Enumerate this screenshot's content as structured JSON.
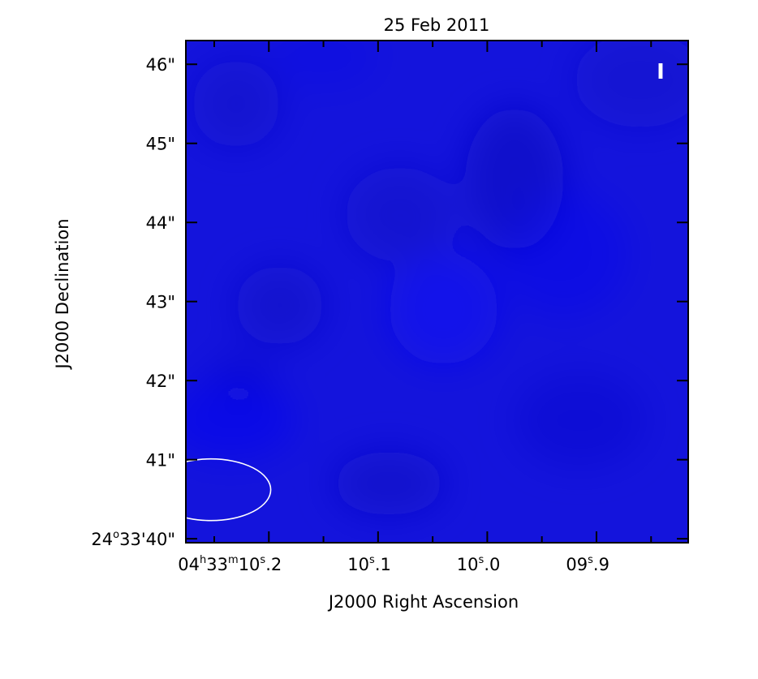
{
  "chart_data": {
    "type": "heatmap",
    "title": "25 Feb 2011",
    "xlabel": "J2000 Right Ascension",
    "ylabel": "J2000 Declination",
    "stokes_label": "I",
    "ra_ticks": [
      {
        "h": "04",
        "m": "33",
        "s": "10",
        "frac": ".2",
        "full": true,
        "value_s": 10.2
      },
      {
        "s": "10",
        "frac": ".1",
        "value_s": 10.1
      },
      {
        "s": "10",
        "frac": ".0",
        "value_s": 10.0
      },
      {
        "s": "09",
        "frac": ".9",
        "value_s": 9.9
      }
    ],
    "dec_ticks": [
      {
        "label": "24°33'40\"",
        "value_arcsec": 40,
        "d": "24",
        "m": "33",
        "s": "40"
      },
      {
        "label": "41\"",
        "value_arcsec": 41
      },
      {
        "label": "42\"",
        "value_arcsec": 42
      },
      {
        "label": "43\"",
        "value_arcsec": 43
      },
      {
        "label": "44\"",
        "value_arcsec": 44
      },
      {
        "label": "45\"",
        "value_arcsec": 45
      },
      {
        "label": "46\"",
        "value_arcsec": 46
      }
    ],
    "xlim_s": [
      10.276,
      9.816
    ],
    "ylim_arcsec": [
      39.95,
      46.3
    ],
    "colormap": {
      "low": "#1010c8",
      "high": "#0a0af2",
      "background": "#1414dc"
    },
    "beam": {
      "center_s": 10.253,
      "center_arcsec": 40.62,
      "major_s": 0.08,
      "minor_arcsec": 0.78,
      "color": "#ffffff"
    },
    "blobs": [
      {
        "ra_s": 10.23,
        "dec_arcsec": 45.5,
        "rs": 0.04,
        "ra": 0.55,
        "amp": -0.25
      },
      {
        "ra_s": 9.975,
        "dec_arcsec": 44.55,
        "rs": 0.045,
        "ra": 0.9,
        "amp": -0.38
      },
      {
        "ra_s": 10.08,
        "dec_arcsec": 44.1,
        "rs": 0.05,
        "ra": 0.6,
        "amp": -0.25
      },
      {
        "ra_s": 9.86,
        "dec_arcsec": 45.8,
        "rs": 0.06,
        "ra": 0.6,
        "amp": -0.22
      },
      {
        "ra_s": 10.19,
        "dec_arcsec": 42.95,
        "rs": 0.04,
        "ra": 0.5,
        "amp": -0.28
      },
      {
        "ra_s": 10.09,
        "dec_arcsec": 40.7,
        "rs": 0.05,
        "ra": 0.4,
        "amp": -0.32
      },
      {
        "ra_s": 10.225,
        "dec_arcsec": 42.0,
        "rs": 0.03,
        "ra": 0.35,
        "amp": -0.18
      },
      {
        "ra_s": 9.915,
        "dec_arcsec": 41.5,
        "rs": 0.06,
        "ra": 0.6,
        "amp": -0.15
      },
      {
        "ra_s": 10.04,
        "dec_arcsec": 42.9,
        "rs": 0.05,
        "ra": 0.7,
        "amp": 0.3
      },
      {
        "ra_s": 9.93,
        "dec_arcsec": 43.6,
        "rs": 0.06,
        "ra": 0.8,
        "amp": 0.15
      },
      {
        "ra_s": 10.235,
        "dec_arcsec": 41.5,
        "rs": 0.06,
        "ra": 0.5,
        "amp": 0.22
      },
      {
        "ra_s": 10.15,
        "dec_arcsec": 46.1,
        "rs": 0.05,
        "ra": 0.4,
        "amp": 0.1
      }
    ]
  }
}
